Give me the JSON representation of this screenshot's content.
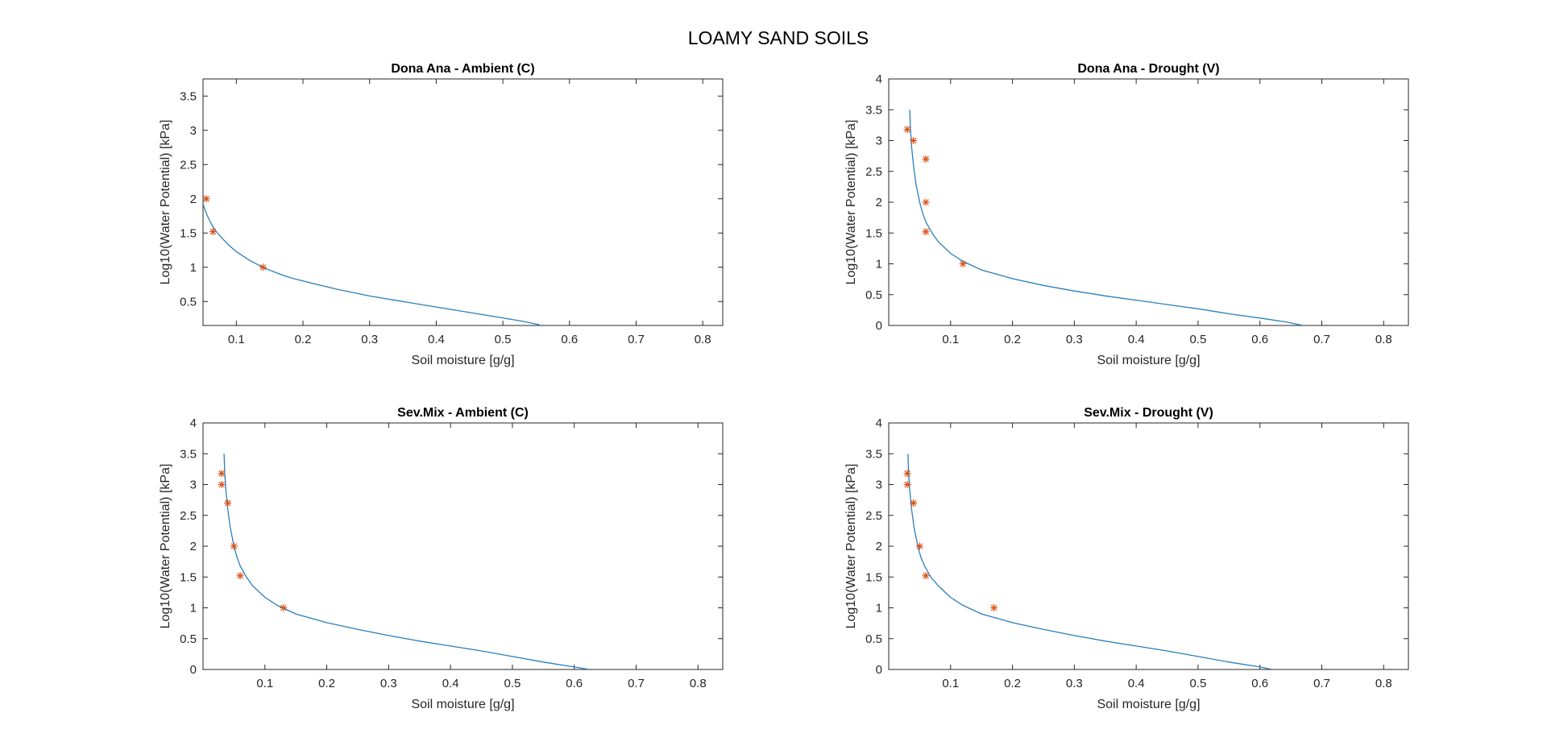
{
  "figure": {
    "title": "LOAMY SAND SOILS"
  },
  "colors": {
    "curve": "#2a7fbd",
    "points": "#d95319",
    "axis": "#262626"
  },
  "chart_data": [
    {
      "type": "line",
      "title": "Dona Ana - Ambient (C)",
      "xlabel": "Soil moisture [g/g]",
      "ylabel": "Log10(Water Potential) [kPa]",
      "xlim": [
        0.05,
        0.83
      ],
      "ylim": [
        0.15,
        3.75
      ],
      "xticks": [
        0.1,
        0.2,
        0.3,
        0.4,
        0.5,
        0.6,
        0.7,
        0.8
      ],
      "xtick_labels": [
        "0.1",
        "0.2",
        "0.3",
        "0.4",
        "0.5",
        "0.6",
        "0.7",
        "0.8"
      ],
      "yticks": [
        0.5,
        1,
        1.5,
        2,
        2.5,
        3,
        3.5
      ],
      "ytick_labels": [
        "0.5",
        "1",
        "1.5",
        "2",
        "2.5",
        "3",
        "3.5"
      ],
      "grid": false,
      "series": [
        {
          "kind": "curve",
          "x": [
            0.05,
            0.052,
            0.056,
            0.06,
            0.065,
            0.07,
            0.08,
            0.09,
            0.1,
            0.12,
            0.14,
            0.16,
            0.18,
            0.2,
            0.25,
            0.3,
            0.35,
            0.4,
            0.45,
            0.5,
            0.53,
            0.555
          ],
          "y": [
            1.93,
            1.86,
            1.76,
            1.68,
            1.59,
            1.52,
            1.41,
            1.31,
            1.23,
            1.1,
            1.0,
            0.92,
            0.85,
            0.8,
            0.68,
            0.58,
            0.5,
            0.42,
            0.34,
            0.26,
            0.21,
            0.16
          ]
        },
        {
          "kind": "markers",
          "x": [
            0.055,
            0.065,
            0.14
          ],
          "y": [
            2.0,
            1.52,
            1.0
          ]
        }
      ]
    },
    {
      "type": "line",
      "title": "Dona Ana - Drought (V)",
      "xlabel": "Soil moisture [g/g]",
      "ylabel": "Log10(Water Potential) [kPa]",
      "xlim": [
        0.0,
        0.84
      ],
      "ylim": [
        0,
        4
      ],
      "xticks": [
        0.1,
        0.2,
        0.3,
        0.4,
        0.5,
        0.6,
        0.7,
        0.8
      ],
      "xtick_labels": [
        "0.1",
        "0.2",
        "0.3",
        "0.4",
        "0.5",
        "0.6",
        "0.7",
        "0.8"
      ],
      "yticks": [
        0,
        0.5,
        1,
        1.5,
        2,
        2.5,
        3,
        3.5,
        4
      ],
      "ytick_labels": [
        "0",
        "0.5",
        "1",
        "1.5",
        "2",
        "2.5",
        "3",
        "3.5",
        "4"
      ],
      "grid": false,
      "series": [
        {
          "kind": "curve",
          "x": [
            0.034,
            0.035,
            0.037,
            0.04,
            0.044,
            0.05,
            0.055,
            0.06,
            0.07,
            0.08,
            0.1,
            0.12,
            0.15,
            0.2,
            0.25,
            0.3,
            0.35,
            0.4,
            0.45,
            0.5,
            0.55,
            0.6,
            0.64,
            0.67
          ],
          "y": [
            3.5,
            3.2,
            2.9,
            2.6,
            2.3,
            2.0,
            1.82,
            1.68,
            1.5,
            1.36,
            1.17,
            1.04,
            0.9,
            0.76,
            0.65,
            0.56,
            0.48,
            0.41,
            0.34,
            0.27,
            0.19,
            0.12,
            0.06,
            0.0
          ]
        },
        {
          "kind": "markers",
          "x": [
            0.03,
            0.04,
            0.06,
            0.06,
            0.06,
            0.12
          ],
          "y": [
            3.18,
            3.0,
            2.7,
            2.0,
            1.52,
            1.0
          ]
        }
      ]
    },
    {
      "type": "line",
      "title": "Sev.Mix - Ambient (C)",
      "xlabel": "Soil moisture [g/g]",
      "ylabel": "Log10(Water Potential) [kPa]",
      "xlim": [
        0.0,
        0.84
      ],
      "ylim": [
        0,
        4
      ],
      "xticks": [
        0.1,
        0.2,
        0.3,
        0.4,
        0.5,
        0.6,
        0.7,
        0.8
      ],
      "xtick_labels": [
        "0.1",
        "0.2",
        "0.3",
        "0.4",
        "0.5",
        "0.6",
        "0.7",
        "0.8"
      ],
      "yticks": [
        0,
        0.5,
        1,
        1.5,
        2,
        2.5,
        3,
        3.5,
        4
      ],
      "ytick_labels": [
        "0",
        "0.5",
        "1",
        "1.5",
        "2",
        "2.5",
        "3",
        "3.5",
        "4"
      ],
      "grid": false,
      "series": [
        {
          "kind": "curve",
          "x": [
            0.034,
            0.035,
            0.037,
            0.04,
            0.044,
            0.05,
            0.055,
            0.06,
            0.07,
            0.08,
            0.1,
            0.12,
            0.15,
            0.2,
            0.25,
            0.3,
            0.35,
            0.4,
            0.45,
            0.5,
            0.55,
            0.6,
            0.625
          ],
          "y": [
            3.5,
            3.2,
            2.9,
            2.6,
            2.3,
            2.0,
            1.82,
            1.68,
            1.5,
            1.36,
            1.17,
            1.04,
            0.9,
            0.76,
            0.65,
            0.55,
            0.46,
            0.38,
            0.3,
            0.21,
            0.12,
            0.04,
            0.0
          ]
        },
        {
          "kind": "markers",
          "x": [
            0.03,
            0.03,
            0.04,
            0.05,
            0.06,
            0.13
          ],
          "y": [
            3.18,
            3.0,
            2.7,
            2.0,
            1.52,
            1.0
          ]
        }
      ]
    },
    {
      "type": "line",
      "title": "Sev.Mix - Drought (V)",
      "xlabel": "Soil moisture [g/g]",
      "ylabel": "Log10(Water Potential) [kPa]",
      "xlim": [
        0.0,
        0.84
      ],
      "ylim": [
        0,
        4
      ],
      "xticks": [
        0.1,
        0.2,
        0.3,
        0.4,
        0.5,
        0.6,
        0.7,
        0.8
      ],
      "xtick_labels": [
        "0.1",
        "0.2",
        "0.3",
        "0.4",
        "0.5",
        "0.6",
        "0.7",
        "0.8"
      ],
      "yticks": [
        0,
        0.5,
        1,
        1.5,
        2,
        2.5,
        3,
        3.5,
        4
      ],
      "ytick_labels": [
        "0",
        "0.5",
        "1",
        "1.5",
        "2",
        "2.5",
        "3",
        "3.5",
        "4"
      ],
      "grid": false,
      "series": [
        {
          "kind": "curve",
          "x": [
            0.031,
            0.032,
            0.034,
            0.037,
            0.041,
            0.047,
            0.052,
            0.058,
            0.068,
            0.08,
            0.1,
            0.12,
            0.15,
            0.2,
            0.25,
            0.3,
            0.35,
            0.4,
            0.45,
            0.5,
            0.55,
            0.6,
            0.62
          ],
          "y": [
            3.5,
            3.2,
            2.9,
            2.6,
            2.3,
            2.0,
            1.82,
            1.68,
            1.5,
            1.36,
            1.17,
            1.04,
            0.9,
            0.76,
            0.65,
            0.55,
            0.46,
            0.38,
            0.3,
            0.21,
            0.12,
            0.04,
            0.0
          ]
        },
        {
          "kind": "markers",
          "x": [
            0.03,
            0.03,
            0.04,
            0.05,
            0.06,
            0.17
          ],
          "y": [
            3.18,
            3.0,
            2.7,
            2.0,
            1.52,
            1.0
          ]
        }
      ]
    }
  ]
}
